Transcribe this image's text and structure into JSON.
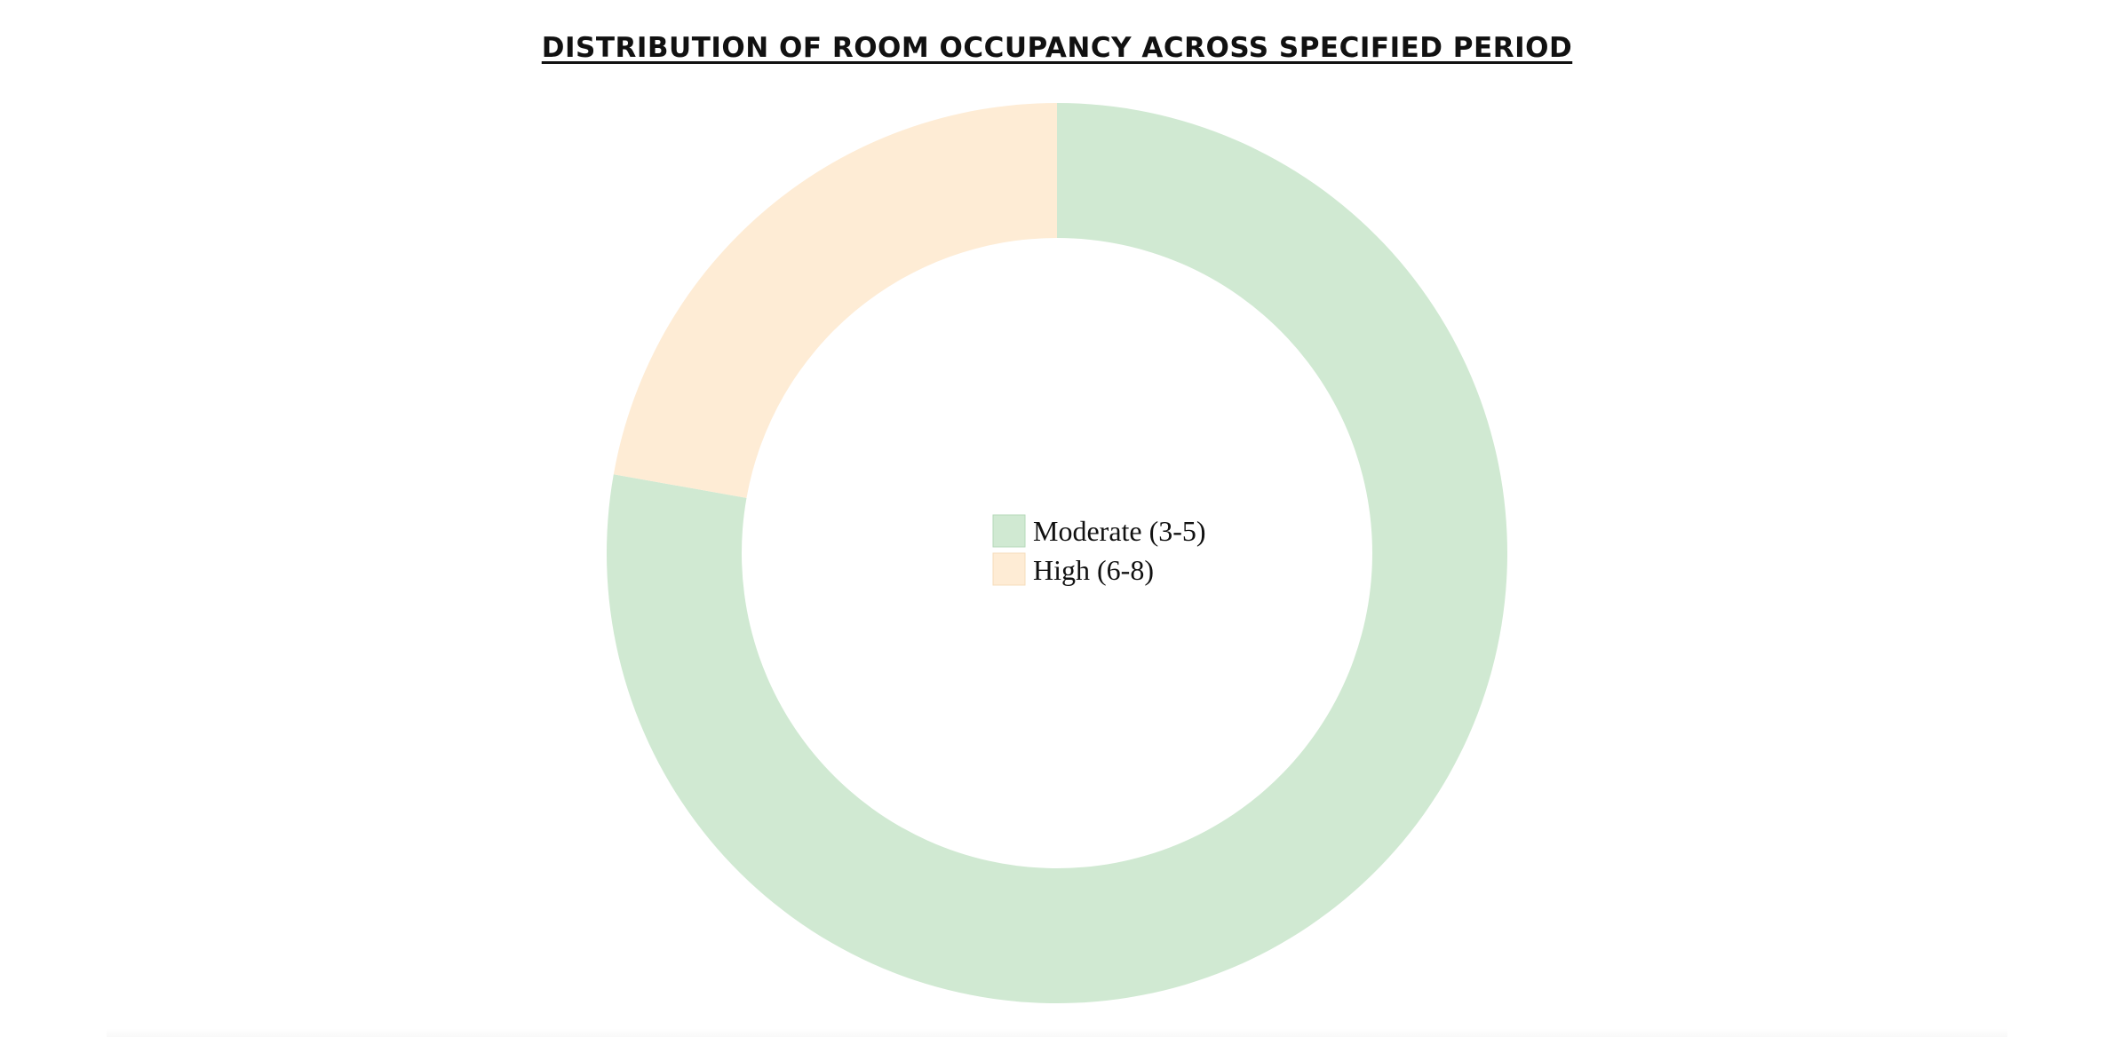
{
  "chart_data": {
    "type": "pie",
    "title": "DISTRIBUTION OF ROOM OCCUPANCY ACROSS SPECIFIED PERIOD",
    "categories": [
      "Moderate (3-5)",
      "High (6-8)"
    ],
    "values": [
      77.8,
      22.2
    ],
    "colors": [
      "#d0e9d2",
      "#feecd5"
    ],
    "legend": {
      "placement": "center",
      "items": [
        "Moderate (3-5)",
        "High (6-8)"
      ]
    }
  }
}
